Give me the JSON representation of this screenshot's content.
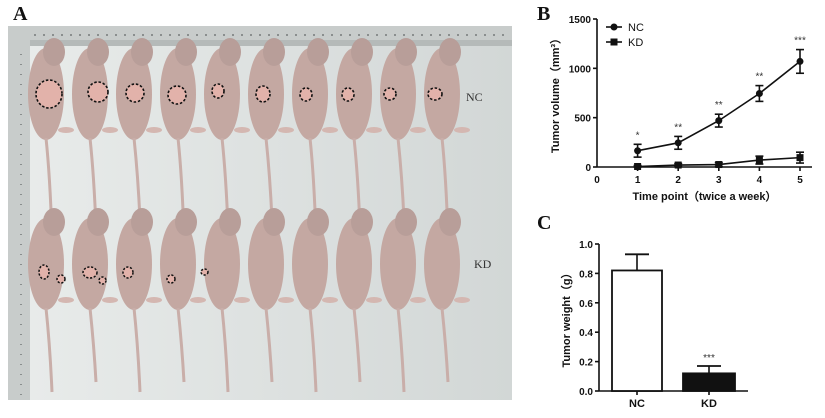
{
  "figure": {
    "panels": {
      "A": {
        "letter": "A",
        "group_labels": [
          "NC",
          "KD"
        ],
        "description": "Photograph of nude mice with outlined subcutaneous tumors, NC row (top, 10 mice) and KD row (bottom, 10 mice)"
      },
      "B": {
        "letter": "B"
      },
      "C": {
        "letter": "C"
      }
    }
  },
  "chart_data": [
    {
      "panel": "B",
      "type": "line",
      "title": "",
      "xlabel": "Time point（twice a week）",
      "ylabel": "Tumor volume（mm³）",
      "x": [
        1,
        2,
        3,
        4,
        5
      ],
      "xticks": [
        0,
        1,
        2,
        3,
        4,
        5
      ],
      "yticks": [
        0,
        500,
        1000,
        1500
      ],
      "xlim": [
        0,
        5.3
      ],
      "ylim": [
        0,
        1500
      ],
      "grid": false,
      "legend_position": "upper-left",
      "series": [
        {
          "name": "NC",
          "marker": "circle",
          "values": [
            165,
            245,
            470,
            745,
            1070
          ],
          "errors": [
            65,
            65,
            65,
            80,
            120
          ]
        },
        {
          "name": "KD",
          "marker": "square",
          "values": [
            5,
            20,
            25,
            70,
            95
          ],
          "errors": [
            10,
            15,
            20,
            40,
            55
          ]
        }
      ],
      "annotations": [
        "*",
        "**",
        "**",
        "**",
        "***"
      ]
    },
    {
      "panel": "C",
      "type": "bar",
      "title": "",
      "xlabel": "",
      "ylabel": "Tumor weight（g）",
      "categories": [
        "NC",
        "KD"
      ],
      "values": [
        0.82,
        0.12
      ],
      "errors": [
        0.11,
        0.05
      ],
      "bar_colors": [
        "#ffffff",
        "#111111"
      ],
      "yticks": [
        0.0,
        0.2,
        0.4,
        0.6,
        0.8,
        1.0
      ],
      "ytick_labels": [
        "0.0",
        "0.2",
        "0.4",
        "0.6",
        "0.8",
        "1.0"
      ],
      "ylim": [
        0,
        1.0
      ],
      "grid": false,
      "annotations": [
        "",
        "***"
      ]
    }
  ]
}
